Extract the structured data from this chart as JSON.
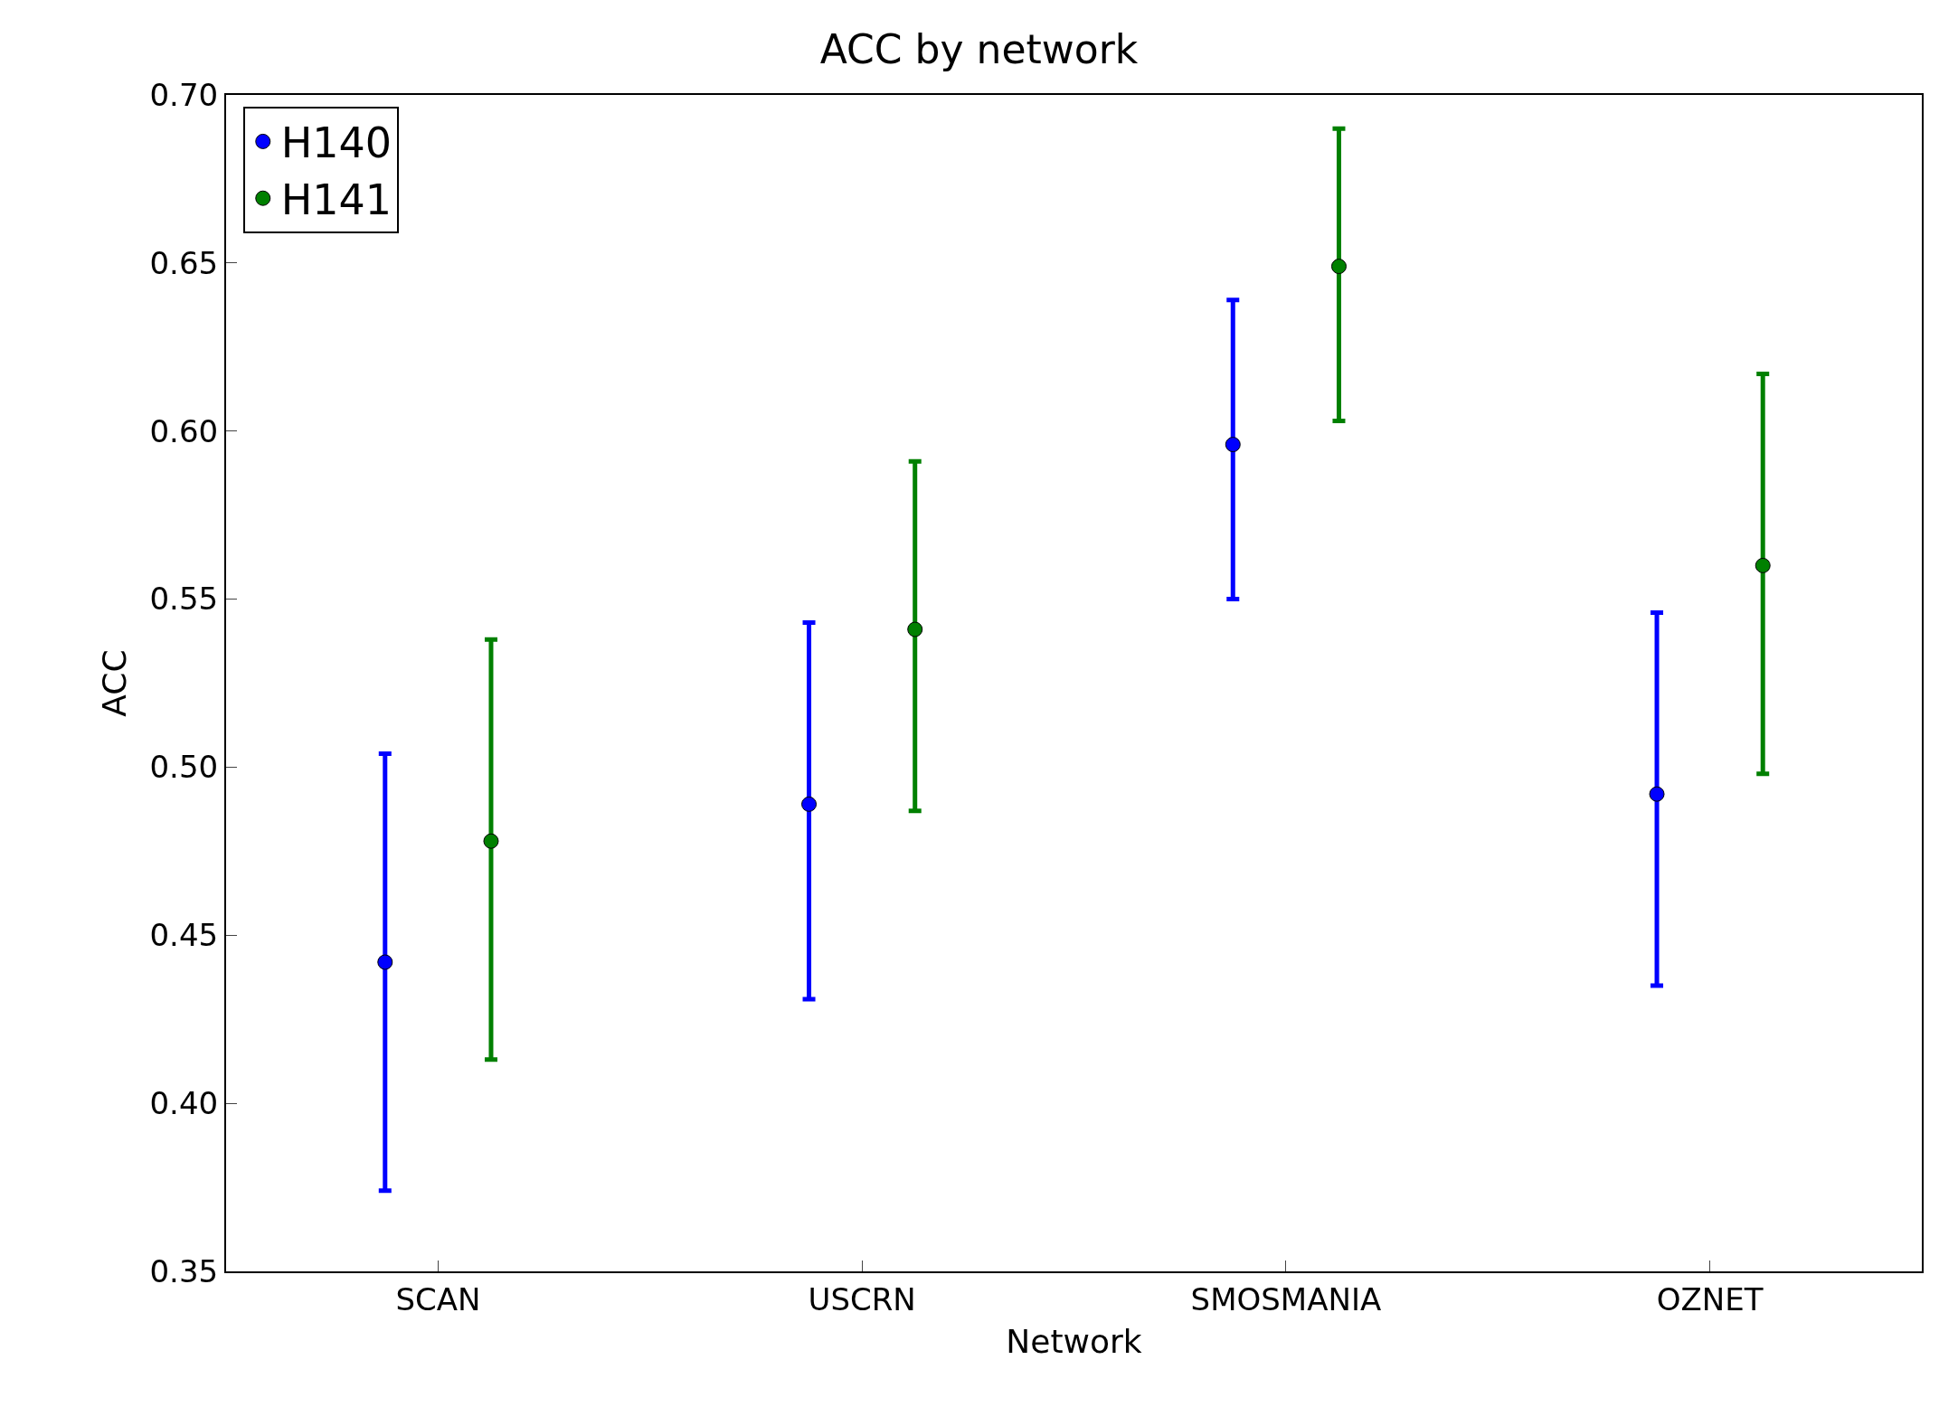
{
  "chart_data": {
    "type": "scatter",
    "title": "ACC by network",
    "xlabel": "Network",
    "ylabel": "ACC",
    "categories": [
      "SCAN",
      "USCRN",
      "SMOSMANIA",
      "OZNET"
    ],
    "series": [
      {
        "name": "H140",
        "color": "#0000ff",
        "values": [
          0.442,
          0.489,
          0.596,
          0.492
        ],
        "errors": [
          [
            0.374,
            0.504
          ],
          [
            0.431,
            0.543
          ],
          [
            0.55,
            0.639
          ],
          [
            0.435,
            0.546
          ]
        ]
      },
      {
        "name": "H141",
        "color": "#008000",
        "values": [
          0.478,
          0.541,
          0.649,
          0.56
        ],
        "errors": [
          [
            0.413,
            0.538
          ],
          [
            0.487,
            0.591
          ],
          [
            0.603,
            0.69
          ],
          [
            0.498,
            0.617
          ]
        ]
      }
    ],
    "ylim": [
      0.35,
      0.7
    ],
    "yticks": [
      0.35,
      {
        "value": 0.4,
        "label": "0.40"
      },
      0.45,
      {
        "value": 0.5,
        "label": "0.50"
      },
      0.55,
      {
        "value": 0.6,
        "label": "0.60"
      },
      0.65,
      {
        "value": 0.7,
        "label": "0.70"
      }
    ],
    "legend": "top left",
    "marker": "circle"
  }
}
